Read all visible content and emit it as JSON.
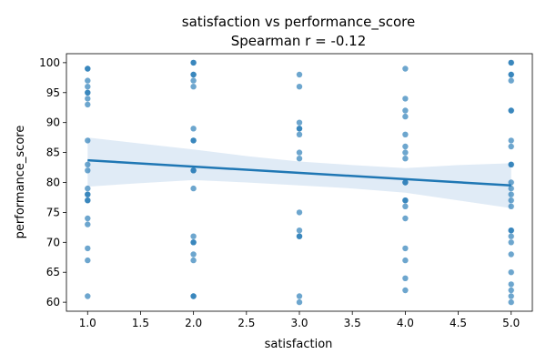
{
  "chart_data": {
    "type": "scatter",
    "title": "satisfaction vs performance_score",
    "subtitle": "Spearman r = -0.12",
    "xlabel": "satisfaction",
    "ylabel": "performance_score",
    "xlim": [
      0.8,
      5.2
    ],
    "ylim": [
      58.5,
      101.5
    ],
    "xticks": [
      "1.0",
      "1.5",
      "2.0",
      "2.5",
      "3.0",
      "3.5",
      "4.0",
      "4.5",
      "5.0"
    ],
    "yticks": [
      "60",
      "65",
      "70",
      "75",
      "80",
      "85",
      "90",
      "95",
      "100"
    ],
    "grid": false,
    "point_color": "#1f77b4",
    "fit_color": "#1f77b4",
    "band_color": "#c6dbef",
    "points": [
      {
        "x": 1,
        "y": 99
      },
      {
        "x": 1,
        "y": 99
      },
      {
        "x": 1,
        "y": 97
      },
      {
        "x": 1,
        "y": 96
      },
      {
        "x": 1,
        "y": 95
      },
      {
        "x": 1,
        "y": 95
      },
      {
        "x": 1,
        "y": 94
      },
      {
        "x": 1,
        "y": 93
      },
      {
        "x": 1,
        "y": 87
      },
      {
        "x": 1,
        "y": 83
      },
      {
        "x": 1,
        "y": 82
      },
      {
        "x": 1,
        "y": 79
      },
      {
        "x": 1,
        "y": 78
      },
      {
        "x": 1,
        "y": 78
      },
      {
        "x": 1,
        "y": 77
      },
      {
        "x": 1,
        "y": 77
      },
      {
        "x": 1,
        "y": 74
      },
      {
        "x": 1,
        "y": 73
      },
      {
        "x": 1,
        "y": 69
      },
      {
        "x": 1,
        "y": 67
      },
      {
        "x": 1,
        "y": 61
      },
      {
        "x": 2,
        "y": 100
      },
      {
        "x": 2,
        "y": 100
      },
      {
        "x": 2,
        "y": 98
      },
      {
        "x": 2,
        "y": 98
      },
      {
        "x": 2,
        "y": 97
      },
      {
        "x": 2,
        "y": 96
      },
      {
        "x": 2,
        "y": 89
      },
      {
        "x": 2,
        "y": 87
      },
      {
        "x": 2,
        "y": 87
      },
      {
        "x": 2,
        "y": 82
      },
      {
        "x": 2,
        "y": 82
      },
      {
        "x": 2,
        "y": 79
      },
      {
        "x": 2,
        "y": 71
      },
      {
        "x": 2,
        "y": 70
      },
      {
        "x": 2,
        "y": 70
      },
      {
        "x": 2,
        "y": 68
      },
      {
        "x": 2,
        "y": 67
      },
      {
        "x": 2,
        "y": 61
      },
      {
        "x": 2,
        "y": 61
      },
      {
        "x": 3,
        "y": 98
      },
      {
        "x": 3,
        "y": 96
      },
      {
        "x": 3,
        "y": 90
      },
      {
        "x": 3,
        "y": 89
      },
      {
        "x": 3,
        "y": 89
      },
      {
        "x": 3,
        "y": 88
      },
      {
        "x": 3,
        "y": 85
      },
      {
        "x": 3,
        "y": 84
      },
      {
        "x": 3,
        "y": 75
      },
      {
        "x": 3,
        "y": 72
      },
      {
        "x": 3,
        "y": 71
      },
      {
        "x": 3,
        "y": 71
      },
      {
        "x": 3,
        "y": 61
      },
      {
        "x": 3,
        "y": 60
      },
      {
        "x": 4,
        "y": 99
      },
      {
        "x": 4,
        "y": 94
      },
      {
        "x": 4,
        "y": 92
      },
      {
        "x": 4,
        "y": 91
      },
      {
        "x": 4,
        "y": 88
      },
      {
        "x": 4,
        "y": 86
      },
      {
        "x": 4,
        "y": 85
      },
      {
        "x": 4,
        "y": 84
      },
      {
        "x": 4,
        "y": 80
      },
      {
        "x": 4,
        "y": 80
      },
      {
        "x": 4,
        "y": 77
      },
      {
        "x": 4,
        "y": 77
      },
      {
        "x": 4,
        "y": 76
      },
      {
        "x": 4,
        "y": 74
      },
      {
        "x": 4,
        "y": 69
      },
      {
        "x": 4,
        "y": 67
      },
      {
        "x": 4,
        "y": 64
      },
      {
        "x": 4,
        "y": 62
      },
      {
        "x": 5,
        "y": 100
      },
      {
        "x": 5,
        "y": 100
      },
      {
        "x": 5,
        "y": 98
      },
      {
        "x": 5,
        "y": 98
      },
      {
        "x": 5,
        "y": 97
      },
      {
        "x": 5,
        "y": 92
      },
      {
        "x": 5,
        "y": 92
      },
      {
        "x": 5,
        "y": 87
      },
      {
        "x": 5,
        "y": 86
      },
      {
        "x": 5,
        "y": 83
      },
      {
        "x": 5,
        "y": 83
      },
      {
        "x": 5,
        "y": 80
      },
      {
        "x": 5,
        "y": 79
      },
      {
        "x": 5,
        "y": 78
      },
      {
        "x": 5,
        "y": 77
      },
      {
        "x": 5,
        "y": 76
      },
      {
        "x": 5,
        "y": 72
      },
      {
        "x": 5,
        "y": 72
      },
      {
        "x": 5,
        "y": 71
      },
      {
        "x": 5,
        "y": 70
      },
      {
        "x": 5,
        "y": 68
      },
      {
        "x": 5,
        "y": 65
      },
      {
        "x": 5,
        "y": 63
      },
      {
        "x": 5,
        "y": 62
      },
      {
        "x": 5,
        "y": 61
      },
      {
        "x": 5,
        "y": 60
      }
    ],
    "fit_line": {
      "x": [
        1,
        5
      ],
      "y": [
        83.7,
        79.5
      ]
    },
    "confidence_band": {
      "x": [
        1,
        1.5,
        2,
        2.5,
        3,
        3.5,
        4,
        4.5,
        5
      ],
      "lower": [
        79.3,
        79.9,
        80.4,
        80.0,
        79.5,
        79.0,
        78.3,
        77.0,
        75.7
      ],
      "upper": [
        87.5,
        86.5,
        85.5,
        84.4,
        83.5,
        82.9,
        82.4,
        82.9,
        83.2
      ]
    }
  }
}
